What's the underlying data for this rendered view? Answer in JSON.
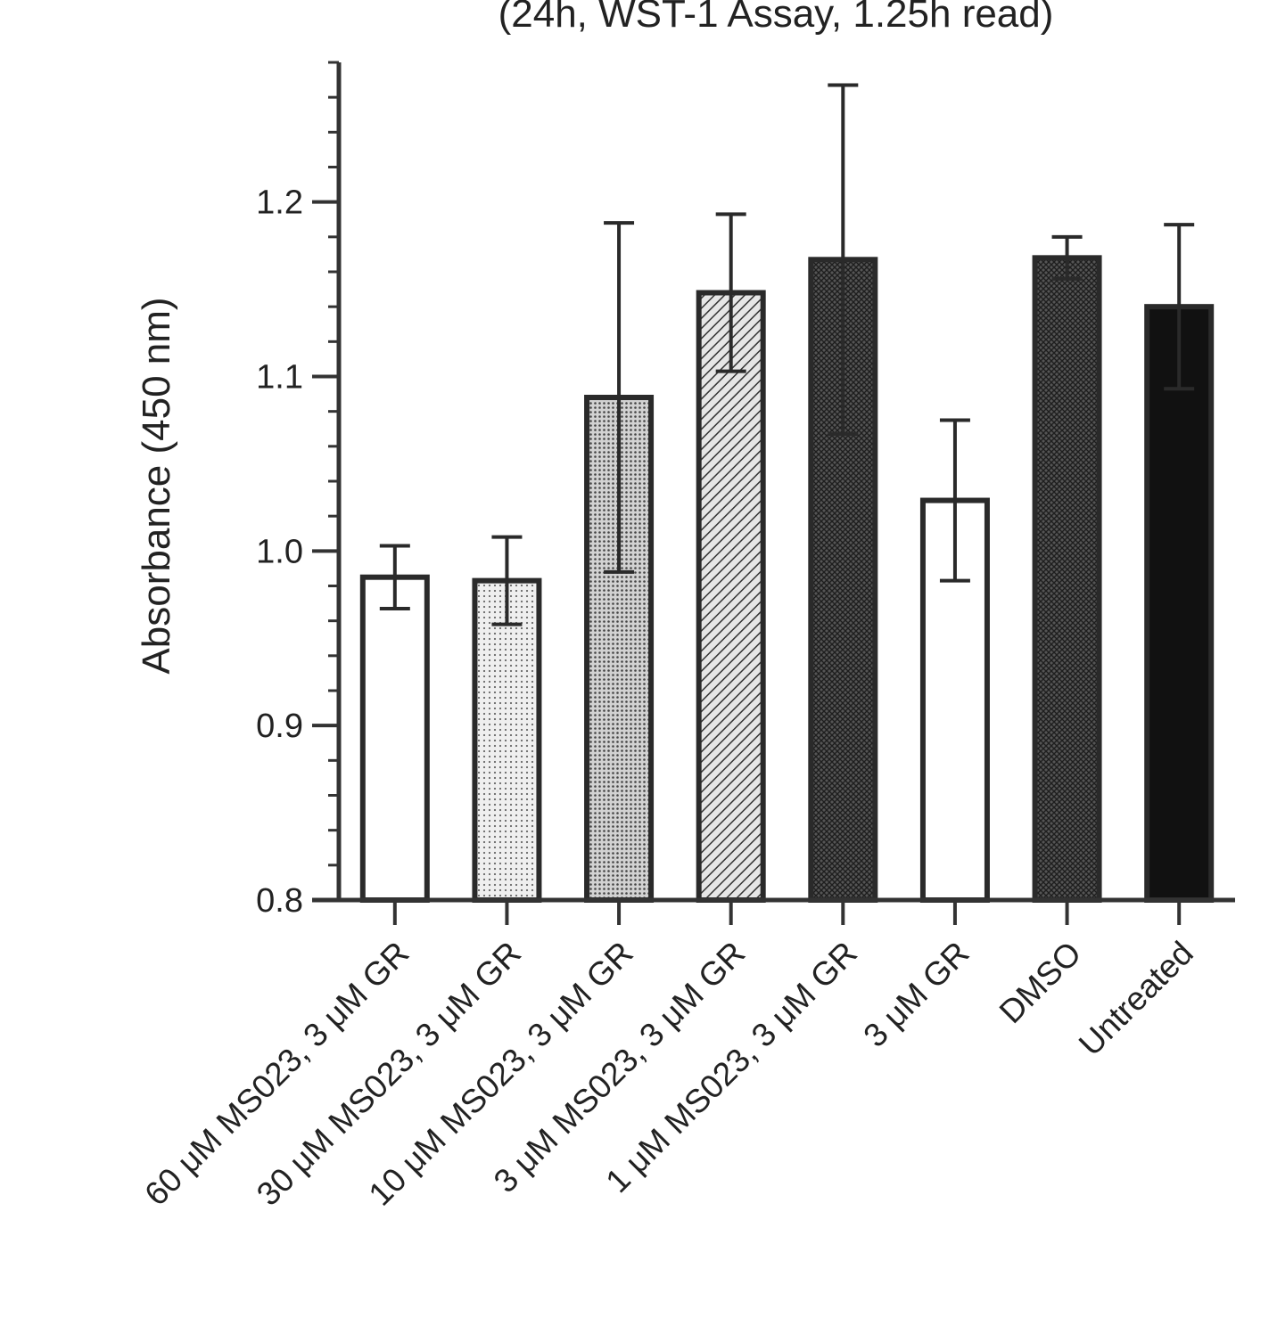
{
  "chart_data": {
    "type": "bar",
    "title": "(24h, WST-1 Assay, 1.25h read)",
    "xlabel": "",
    "ylabel": "Absorbance (450 nm)",
    "ylim": [
      0.8,
      1.28
    ],
    "yticks": [
      "0.8",
      "0.9",
      "1.0",
      "1.1",
      "1.2"
    ],
    "grid": false,
    "categories": [
      "60 μM MS023, 3 μM GR",
      "30 μM MS023, 3 μM GR",
      "10 μM MS023, 3 μM GR",
      "3 μM MS023, 3 μM GR",
      "1 μM MS023, 3 μM GR",
      "3 μM GR",
      "DMSO",
      "Untreated"
    ],
    "values": [
      0.985,
      0.983,
      1.088,
      1.148,
      1.167,
      1.029,
      1.168,
      1.14
    ],
    "error": [
      0.018,
      0.025,
      0.1,
      0.045,
      0.1,
      0.046,
      0.012,
      0.047
    ],
    "fills": [
      "white",
      "dots-light",
      "dots-medium",
      "hatch",
      "cross-dark",
      "white",
      "cross-dark",
      "solid"
    ],
    "colors": {
      "stroke": "#2a2a2a",
      "bar_solid": "#111111",
      "axis": "#333333"
    }
  }
}
